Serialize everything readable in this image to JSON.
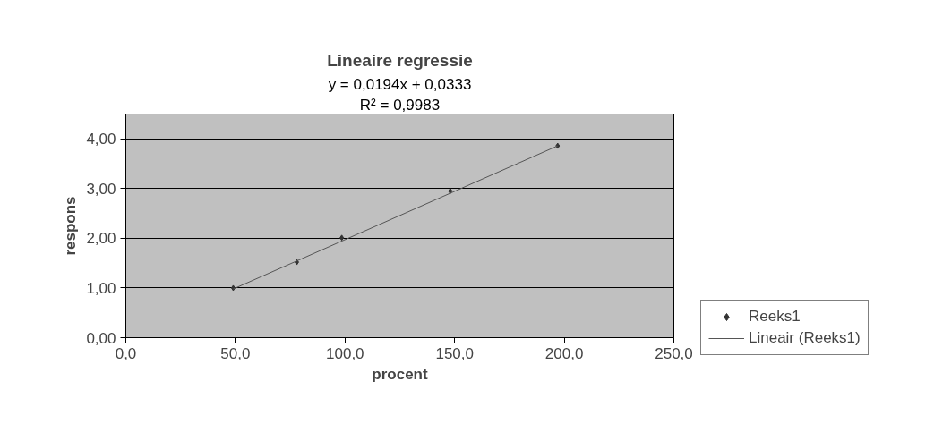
{
  "chart_data": {
    "type": "scatter",
    "title": "Lineaire regressie",
    "xlabel": "procent",
    "ylabel": "respons",
    "annotations": [
      "y = 0,0194x + 0,0333",
      "R² = 0,9983"
    ],
    "xlim": [
      0,
      250
    ],
    "ylim": [
      0,
      4.5
    ],
    "xticks": [
      {
        "value": 0,
        "label": "0,0"
      },
      {
        "value": 50,
        "label": "50,0"
      },
      {
        "value": 100,
        "label": "100,0"
      },
      {
        "value": 150,
        "label": "150,0"
      },
      {
        "value": 200,
        "label": "200,0"
      },
      {
        "value": 250,
        "label": "250,0"
      }
    ],
    "yticks": [
      {
        "value": 0,
        "label": "0,00"
      },
      {
        "value": 1,
        "label": "1,00"
      },
      {
        "value": 2,
        "label": "2,00"
      },
      {
        "value": 3,
        "label": "3,00"
      },
      {
        "value": 4,
        "label": "4,00"
      }
    ],
    "grid": "y",
    "legend": "right",
    "series": [
      {
        "name": "Reeks1",
        "marker": "diamond",
        "color": "#333333",
        "x": [
          49,
          78,
          98.5,
          148,
          197
        ],
        "values": [
          1.0,
          1.52,
          2.01,
          2.95,
          3.86
        ]
      },
      {
        "name": "Lineair (Reeks1)",
        "type": "line",
        "line_style": "solid",
        "color": "#555555",
        "x": [
          49,
          197
        ],
        "values": [
          0.98,
          3.86
        ]
      }
    ]
  }
}
